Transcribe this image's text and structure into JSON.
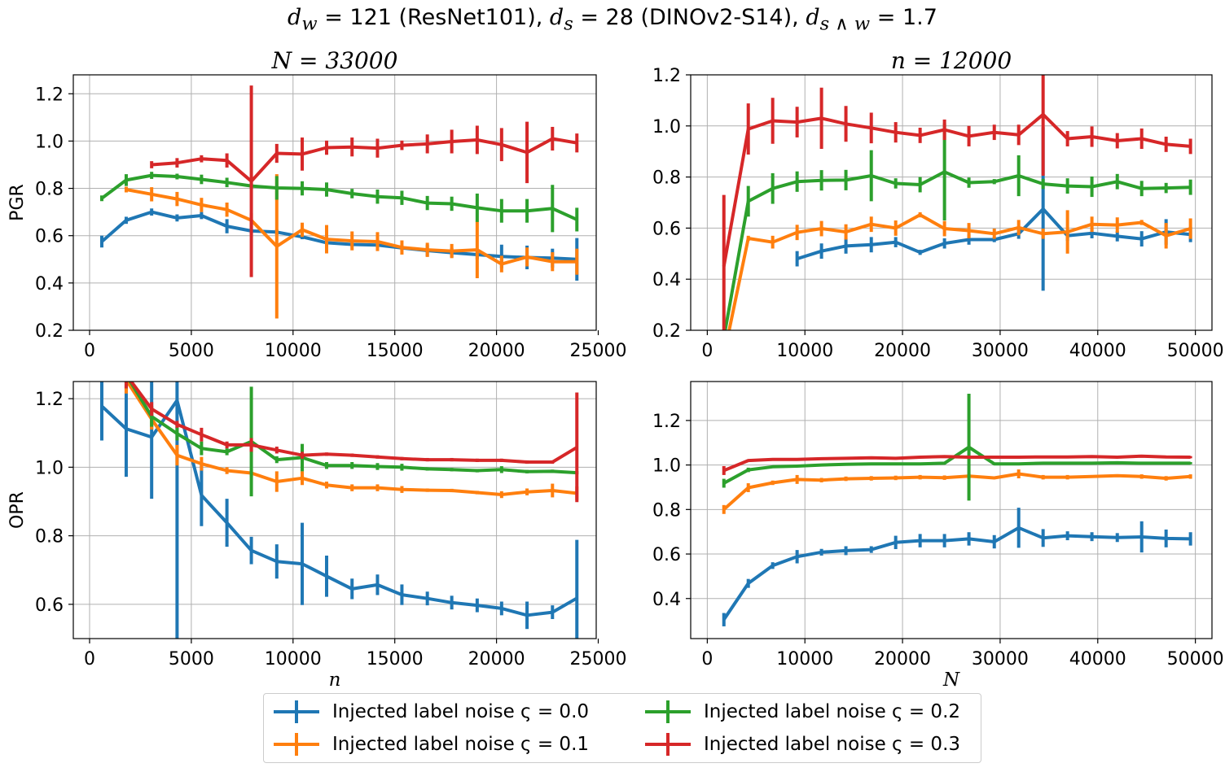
{
  "figure": {
    "suptitle": "d_w = 121 (ResNet101), d_s = 28 (DINOv2-S14), d_{s∧w} = 1.7",
    "suptitle_parts": {
      "dw_label": "d",
      "dw_sub": "w",
      "dw_value": " = 121 (ResNet101), ",
      "ds_label": "d",
      "ds_sub": "s",
      "ds_value": " = 28 (DINOv2-S14), ",
      "dsw_label": "d",
      "dsw_sub": "s ∧ w",
      "dsw_value": " = 1.7"
    },
    "colors": {
      "c0": "#1f77b4",
      "c1": "#ff7f0e",
      "c2": "#2ca02c",
      "c3": "#d62728",
      "grid": "#b0b0b0"
    }
  },
  "legend": [
    {
      "label": "Injected label noise ς = 0.0",
      "color": "#1f77b4"
    },
    {
      "label": "Injected label noise ς = 0.1",
      "color": "#ff7f0e"
    },
    {
      "label": "Injected label noise ς = 0.2",
      "color": "#2ca02c"
    },
    {
      "label": "Injected label noise ς = 0.3",
      "color": "#d62728"
    }
  ],
  "chart_data": [
    {
      "type": "line",
      "title": "N = 33000",
      "ylabel": "PGR",
      "xlabel": "",
      "xlim": [
        -800,
        24900
      ],
      "ylim": [
        0.2,
        1.28
      ],
      "xticks": [
        0,
        5000,
        10000,
        15000,
        20000,
        25000
      ],
      "yticks": [
        0.2,
        0.4,
        0.6,
        0.8,
        1.0,
        1.2
      ],
      "xtick_labels": [
        "0",
        "5000",
        "10000",
        "15000",
        "20000",
        "25000"
      ],
      "ytick_labels": [
        "0.2",
        "0.4",
        "0.6",
        "0.8",
        "1.0",
        "1.2"
      ],
      "grid": true,
      "x": [
        600,
        1800,
        3050,
        4300,
        5500,
        6750,
        7950,
        9200,
        10450,
        11650,
        12900,
        14150,
        15350,
        16600,
        17800,
        19050,
        20250,
        21500,
        22750,
        23950
      ],
      "series": [
        {
          "name": "Injected label noise ς = 0.0",
          "color": "#1f77b4",
          "y": [
            0.575,
            0.665,
            0.7,
            0.675,
            0.685,
            0.64,
            0.62,
            0.615,
            0.595,
            0.57,
            0.563,
            0.56,
            0.548,
            0.537,
            0.528,
            0.52,
            0.512,
            0.508,
            0.505,
            0.5
          ],
          "err": [
            0.025,
            0.015,
            0.015,
            0.015,
            0.015,
            0.03,
            0.015,
            0.012,
            0.01,
            0.008,
            0.008,
            0.008,
            0.01,
            0.025,
            0.02,
            0.02,
            0.05,
            0.05,
            0.04,
            0.09
          ]
        },
        {
          "name": "Injected label noise ς = 0.1",
          "color": "#ff7f0e",
          "y": [
            null,
            0.795,
            0.775,
            0.755,
            0.73,
            0.71,
            0.665,
            0.555,
            0.625,
            0.585,
            0.578,
            0.575,
            0.55,
            0.54,
            0.535,
            0.54,
            0.48,
            0.51,
            0.49,
            0.49
          ],
          "err": [
            null,
            0.012,
            0.03,
            0.03,
            0.03,
            0.03,
            0.03,
            0.305,
            0.03,
            0.06,
            0.04,
            0.04,
            0.03,
            0.03,
            0.03,
            0.12,
            0.035,
            0.04,
            0.04,
            0.055
          ]
        },
        {
          "name": "Injected label noise ς = 0.2",
          "color": "#2ca02c",
          "y": [
            0.758,
            0.835,
            0.855,
            0.85,
            0.838,
            0.825,
            0.81,
            0.802,
            0.8,
            0.795,
            0.778,
            0.765,
            0.76,
            0.738,
            0.735,
            0.718,
            0.705,
            0.705,
            0.715,
            0.668
          ],
          "err": [
            0.012,
            0.025,
            0.015,
            0.012,
            0.02,
            0.02,
            0.012,
            0.05,
            0.03,
            0.03,
            0.02,
            0.03,
            0.03,
            0.03,
            0.03,
            0.06,
            0.05,
            0.05,
            0.1,
            0.05
          ]
        },
        {
          "name": "Injected label noise ς = 0.3",
          "color": "#d62728",
          "y": [
            null,
            null,
            0.9,
            0.908,
            0.925,
            0.918,
            0.83,
            0.948,
            0.945,
            0.972,
            0.975,
            0.97,
            0.982,
            0.988,
            0.998,
            1.005,
            0.985,
            0.952,
            1.01,
            0.992
          ],
          "err": [
            null,
            null,
            0.015,
            0.02,
            0.015,
            0.03,
            0.405,
            0.04,
            0.07,
            0.03,
            0.04,
            0.04,
            0.02,
            0.04,
            0.05,
            0.06,
            0.07,
            0.13,
            0.05,
            0.04
          ]
        }
      ]
    },
    {
      "type": "line",
      "title": "n = 12000",
      "ylabel": "",
      "xlabel": "",
      "xlim": [
        -1700,
        51700
      ],
      "ylim": [
        0.2,
        1.2
      ],
      "xticks": [
        0,
        10000,
        20000,
        30000,
        40000,
        50000
      ],
      "yticks": [
        0.2,
        0.4,
        0.6,
        0.8,
        1.0,
        1.2
      ],
      "xtick_labels": [
        "0",
        "10000",
        "20000",
        "30000",
        "40000",
        "50000"
      ],
      "ytick_labels": [
        "0.2",
        "0.4",
        "0.6",
        "0.8",
        "1.0",
        "1.2"
      ],
      "grid": true,
      "x": [
        1700,
        4200,
        6700,
        9200,
        11700,
        14200,
        16800,
        19300,
        21800,
        24300,
        26800,
        29400,
        31900,
        34400,
        36900,
        39400,
        42000,
        44500,
        47000,
        49500
      ],
      "series": [
        {
          "name": "Injected label noise ς = 0.0",
          "color": "#1f77b4",
          "y": [
            null,
            null,
            null,
            0.48,
            0.51,
            0.53,
            0.535,
            0.545,
            0.505,
            0.54,
            0.555,
            0.555,
            0.578,
            0.675,
            0.57,
            0.58,
            0.568,
            0.558,
            0.585,
            0.575
          ],
          "err": [
            null,
            null,
            null,
            0.03,
            0.03,
            0.03,
            0.03,
            0.02,
            0.01,
            0.02,
            0.02,
            0.01,
            0.02,
            0.32,
            0.02,
            0.02,
            0.02,
            0.03,
            0.05,
            0.03
          ]
        },
        {
          "name": "Injected label noise ς = 0.1",
          "color": "#ff7f0e",
          "y": [
            0.1,
            0.56,
            0.545,
            0.583,
            0.598,
            0.585,
            0.615,
            0.6,
            0.652,
            0.598,
            0.59,
            0.578,
            0.602,
            0.578,
            0.585,
            0.615,
            0.612,
            0.622,
            0.57,
            0.598
          ],
          "err": [
            null,
            0.01,
            0.025,
            0.03,
            0.03,
            0.03,
            0.03,
            0.03,
            0.01,
            0.03,
            0.03,
            0.02,
            0.03,
            0.02,
            0.085,
            0.03,
            0.03,
            0.01,
            0.05,
            0.04
          ]
        },
        {
          "name": "Injected label noise ς = 0.2",
          "color": "#2ca02c",
          "y": [
            0.17,
            0.705,
            0.755,
            0.782,
            0.787,
            0.788,
            0.805,
            0.775,
            0.77,
            0.82,
            0.778,
            0.782,
            0.805,
            0.773,
            0.765,
            0.762,
            0.782,
            0.755,
            0.757,
            0.76
          ],
          "err": [
            null,
            0.06,
            0.06,
            0.04,
            0.04,
            0.04,
            0.1,
            0.02,
            0.03,
            0.19,
            0.02,
            0.01,
            0.08,
            0.02,
            0.03,
            0.04,
            0.03,
            0.03,
            0.02,
            0.03
          ]
        },
        {
          "name": "Injected label noise ς = 0.3",
          "color": "#d62728",
          "y": [
            0.45,
            0.988,
            1.02,
            1.015,
            1.03,
            1.008,
            0.992,
            0.975,
            0.963,
            0.985,
            0.96,
            0.975,
            0.965,
            1.045,
            0.95,
            0.958,
            0.942,
            0.95,
            0.928,
            0.92
          ],
          "err": [
            0.28,
            0.1,
            0.09,
            0.06,
            0.12,
            0.07,
            0.06,
            0.04,
            0.03,
            0.04,
            0.04,
            0.03,
            0.04,
            0.24,
            0.03,
            0.04,
            0.03,
            0.04,
            0.03,
            0.03
          ]
        }
      ]
    },
    {
      "type": "line",
      "title": "",
      "ylabel": "OPR",
      "xlabel": "n",
      "xlim": [
        -800,
        24900
      ],
      "ylim": [
        0.5,
        1.25
      ],
      "xticks": [
        0,
        5000,
        10000,
        15000,
        20000,
        25000
      ],
      "yticks": [
        0.6,
        0.8,
        1.0,
        1.2
      ],
      "xtick_labels": [
        "0",
        "5000",
        "10000",
        "15000",
        "20000",
        "25000"
      ],
      "ytick_labels": [
        "0.6",
        "0.8",
        "1.0",
        "1.2"
      ],
      "grid": true,
      "x": [
        600,
        1800,
        3050,
        4300,
        5500,
        6750,
        7950,
        9200,
        10450,
        11650,
        12900,
        14150,
        15350,
        16600,
        17800,
        19050,
        20250,
        21500,
        22750,
        23950
      ],
      "series": [
        {
          "name": "Injected label noise ς = 0.0",
          "color": "#1f77b4",
          "y": [
            1.178,
            1.112,
            1.088,
            1.195,
            0.918,
            0.838,
            0.757,
            0.725,
            0.718,
            0.682,
            0.645,
            0.657,
            0.628,
            0.617,
            0.605,
            0.597,
            0.588,
            0.568,
            0.577,
            0.618
          ],
          "err": [
            0.1,
            0.14,
            0.18,
            0.7,
            0.09,
            0.07,
            0.04,
            0.05,
            0.12,
            0.06,
            0.03,
            0.03,
            0.03,
            0.02,
            0.02,
            0.02,
            0.02,
            0.04,
            0.02,
            0.17
          ]
        },
        {
          "name": "Injected label noise ς = 0.1",
          "color": "#ff7f0e",
          "y": [
            1.3,
            1.255,
            1.14,
            1.035,
            1.01,
            0.99,
            0.983,
            0.958,
            0.968,
            0.948,
            0.94,
            0.94,
            0.935,
            0.933,
            0.932,
            0.926,
            0.92,
            0.928,
            0.932,
            0.924
          ],
          "err": [
            0.05,
            0.04,
            0.03,
            0.03,
            0.02,
            0.01,
            0.01,
            0.03,
            0.02,
            0.01,
            0.01,
            0.01,
            0.01,
            0.005,
            0.005,
            0.005,
            0.01,
            0.01,
            0.02,
            0.02
          ]
        },
        {
          "name": "Injected label noise ς = 0.2",
          "color": "#2ca02c",
          "y": [
            1.3,
            1.27,
            1.148,
            1.098,
            1.055,
            1.045,
            1.075,
            1.022,
            1.028,
            1.005,
            1.005,
            1.002,
            1.0,
            0.995,
            0.993,
            0.99,
            0.993,
            0.987,
            0.988,
            0.984
          ],
          "err": [
            0.05,
            0.04,
            0.03,
            0.02,
            0.02,
            0.01,
            0.16,
            0.01,
            0.04,
            0.01,
            0.01,
            0.01,
            0.01,
            0.005,
            0.005,
            0.005,
            0.01,
            0.005,
            0.005,
            0.005
          ]
        },
        {
          "name": "Injected label noise ς = 0.3",
          "color": "#d62728",
          "y": [
            1.3,
            1.27,
            1.17,
            1.125,
            1.095,
            1.065,
            1.065,
            1.05,
            1.035,
            1.038,
            1.035,
            1.03,
            1.025,
            1.022,
            1.022,
            1.02,
            1.02,
            1.015,
            1.015,
            1.058
          ],
          "err": [
            0.05,
            0.04,
            0.02,
            0.01,
            0.02,
            0.01,
            0.02,
            0.01,
            0.01,
            0.005,
            0.005,
            0.005,
            0.005,
            0.005,
            0.005,
            0.005,
            0.005,
            0.005,
            0.005,
            0.16
          ]
        }
      ]
    },
    {
      "type": "line",
      "title": "",
      "ylabel": "",
      "xlabel": "N",
      "xlim": [
        -1700,
        51700
      ],
      "ylim": [
        0.22,
        1.375
      ],
      "xticks": [
        0,
        10000,
        20000,
        30000,
        40000,
        50000
      ],
      "yticks": [
        0.4,
        0.6,
        0.8,
        1.0,
        1.2
      ],
      "xtick_labels": [
        "0",
        "10000",
        "20000",
        "30000",
        "40000",
        "50000"
      ],
      "ytick_labels": [
        "0.4",
        "0.6",
        "0.8",
        "1.0",
        "1.2"
      ],
      "grid": true,
      "x": [
        1700,
        4200,
        6700,
        9200,
        11700,
        14200,
        16800,
        19300,
        21800,
        24300,
        26800,
        29400,
        31900,
        34400,
        36900,
        39400,
        42000,
        44500,
        47000,
        49500
      ],
      "series": [
        {
          "name": "Injected label noise ς = 0.0",
          "color": "#1f77b4",
          "y": [
            0.305,
            0.468,
            0.548,
            0.588,
            0.608,
            0.615,
            0.62,
            0.652,
            0.66,
            0.66,
            0.668,
            0.655,
            0.718,
            0.672,
            0.682,
            0.678,
            0.674,
            0.677,
            0.67,
            0.668
          ],
          "err": [
            0.03,
            0.02,
            0.015,
            0.03,
            0.015,
            0.02,
            0.015,
            0.03,
            0.03,
            0.03,
            0.03,
            0.03,
            0.09,
            0.04,
            0.02,
            0.02,
            0.02,
            0.07,
            0.04,
            0.03
          ]
        },
        {
          "name": "Injected label noise ς = 0.1",
          "color": "#ff7f0e",
          "y": [
            0.8,
            0.898,
            0.92,
            0.935,
            0.932,
            0.938,
            0.94,
            0.942,
            0.945,
            0.943,
            0.95,
            0.942,
            0.96,
            0.945,
            0.945,
            0.948,
            0.952,
            0.948,
            0.94,
            0.948
          ],
          "err": [
            0.02,
            0.02,
            0.01,
            0.02,
            0.01,
            0.01,
            0.01,
            0.01,
            0.01,
            0.01,
            0.01,
            0.005,
            0.02,
            0.01,
            0.01,
            0.005,
            0.005,
            0.01,
            0.01,
            0.01
          ]
        },
        {
          "name": "Injected label noise ς = 0.2",
          "color": "#2ca02c",
          "y": [
            0.918,
            0.978,
            0.992,
            0.995,
            1.0,
            1.003,
            1.005,
            1.005,
            1.005,
            1.008,
            1.08,
            1.005,
            1.005,
            1.008,
            1.008,
            1.008,
            1.01,
            1.008,
            1.008,
            1.008
          ],
          "err": [
            0.02,
            0.01,
            0.005,
            0.005,
            0.005,
            0.005,
            0.005,
            0.005,
            0.005,
            0.005,
            0.24,
            0.005,
            0.005,
            0.005,
            0.005,
            0.005,
            0.005,
            0.005,
            0.005,
            0.005
          ]
        },
        {
          "name": "Injected label noise ς = 0.3",
          "color": "#d62728",
          "y": [
            0.975,
            1.02,
            1.025,
            1.025,
            1.028,
            1.03,
            1.032,
            1.03,
            1.035,
            1.038,
            1.035,
            1.035,
            1.035,
            1.036,
            1.036,
            1.038,
            1.035,
            1.04,
            1.036,
            1.035
          ],
          "err": [
            0.02,
            0.005,
            0.005,
            0.005,
            0.005,
            0.005,
            0.005,
            0.005,
            0.005,
            0.005,
            0.005,
            0.005,
            0.005,
            0.005,
            0.005,
            0.005,
            0.005,
            0.005,
            0.005,
            0.005
          ]
        }
      ]
    }
  ]
}
